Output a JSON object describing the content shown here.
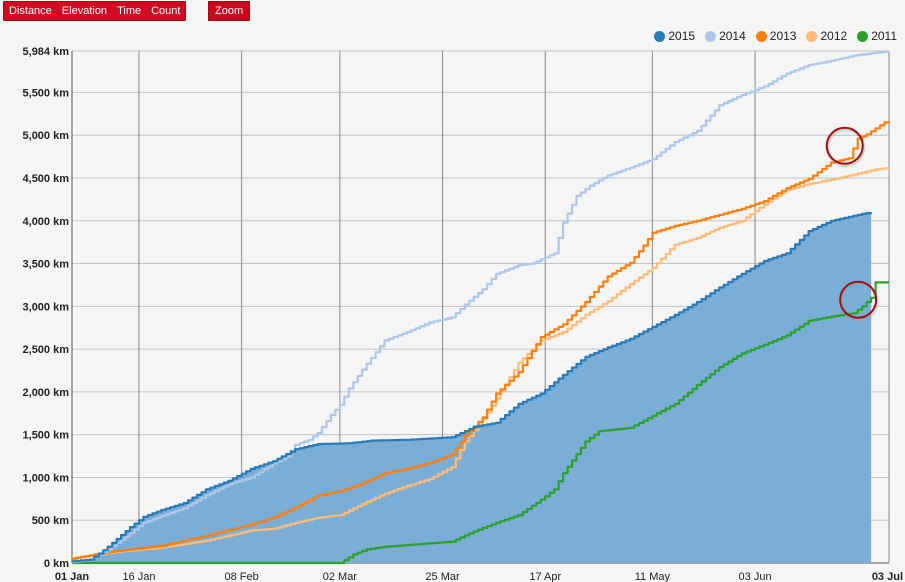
{
  "toolbar": {
    "tabs": [
      "Distance",
      "Elevation",
      "Time",
      "Count"
    ],
    "zoom_label": "Zoom"
  },
  "colors": {
    "2015": "#2a7ab8",
    "2014": "#aec7e8",
    "2013": "#ff7f0e",
    "2012": "#ffbb78",
    "2011": "#2ca02c",
    "area_2015": "#7aaed6",
    "highlight_circle": "#a01010"
  },
  "chart_data": {
    "type": "line",
    "title": "",
    "xlabel": "",
    "ylabel": "",
    "x_axis": {
      "ticks": [
        "01 Jan",
        "16 Jan",
        "08 Feb",
        "02 Mar",
        "25 Mar",
        "17 Apr",
        "11 May",
        "03 Jun",
        "03 Jul"
      ],
      "tick_days": [
        0,
        15,
        38,
        60,
        83,
        106,
        130,
        153,
        183
      ],
      "range_days": [
        0,
        183
      ]
    },
    "y_axis": {
      "ticks": [
        "0 km",
        "500 km",
        "1,000 km",
        "1,500 km",
        "2,000 km",
        "2,500 km",
        "3,000 km",
        "3,500 km",
        "4,000 km",
        "4,500 km",
        "5,000 km",
        "5,500 km",
        "5,984 km"
      ],
      "tick_values": [
        0,
        500,
        1000,
        1500,
        2000,
        2500,
        3000,
        3500,
        4000,
        4500,
        5000,
        5500,
        5984
      ],
      "range": [
        0,
        5984
      ],
      "unit": "km"
    },
    "grid": true,
    "legend_position": "top-right",
    "series": [
      {
        "name": "2015",
        "color_key": "2015",
        "fill": true,
        "points": [
          [
            0,
            20
          ],
          [
            4,
            40
          ],
          [
            6,
            110
          ],
          [
            8,
            190
          ],
          [
            10,
            280
          ],
          [
            13,
            420
          ],
          [
            16,
            540
          ],
          [
            20,
            620
          ],
          [
            25,
            700
          ],
          [
            30,
            860
          ],
          [
            35,
            960
          ],
          [
            40,
            1100
          ],
          [
            45,
            1190
          ],
          [
            50,
            1330
          ],
          [
            55,
            1390
          ],
          [
            62,
            1400
          ],
          [
            67,
            1430
          ],
          [
            75,
            1440
          ],
          [
            85,
            1470
          ],
          [
            90,
            1590
          ],
          [
            95,
            1640
          ],
          [
            100,
            1860
          ],
          [
            105,
            1980
          ],
          [
            110,
            2200
          ],
          [
            115,
            2410
          ],
          [
            120,
            2520
          ],
          [
            125,
            2620
          ],
          [
            130,
            2760
          ],
          [
            135,
            2900
          ],
          [
            140,
            3050
          ],
          [
            145,
            3220
          ],
          [
            150,
            3380
          ],
          [
            155,
            3530
          ],
          [
            160,
            3620
          ],
          [
            165,
            3880
          ],
          [
            170,
            4000
          ],
          [
            176,
            4070
          ],
          [
            179,
            4100
          ]
        ]
      },
      {
        "name": "2014",
        "color_key": "2014",
        "fill": false,
        "points": [
          [
            0,
            10
          ],
          [
            4,
            40
          ],
          [
            8,
            160
          ],
          [
            12,
            310
          ],
          [
            16,
            470
          ],
          [
            20,
            550
          ],
          [
            25,
            640
          ],
          [
            30,
            790
          ],
          [
            35,
            920
          ],
          [
            40,
            1000
          ],
          [
            45,
            1160
          ],
          [
            48,
            1240
          ],
          [
            50,
            1380
          ],
          [
            53,
            1440
          ],
          [
            55,
            1520
          ],
          [
            58,
            1730
          ],
          [
            60,
            1850
          ],
          [
            62,
            2040
          ],
          [
            65,
            2260
          ],
          [
            70,
            2600
          ],
          [
            75,
            2700
          ],
          [
            80,
            2810
          ],
          [
            85,
            2870
          ],
          [
            88,
            3020
          ],
          [
            92,
            3200
          ],
          [
            95,
            3380
          ],
          [
            100,
            3480
          ],
          [
            103,
            3500
          ],
          [
            108,
            3620
          ],
          [
            110,
            3980
          ],
          [
            113,
            4290
          ],
          [
            116,
            4410
          ],
          [
            120,
            4530
          ],
          [
            125,
            4620
          ],
          [
            130,
            4720
          ],
          [
            135,
            4920
          ],
          [
            140,
            5050
          ],
          [
            145,
            5350
          ],
          [
            150,
            5470
          ],
          [
            155,
            5570
          ],
          [
            160,
            5720
          ],
          [
            165,
            5820
          ],
          [
            170,
            5870
          ],
          [
            175,
            5930
          ],
          [
            183,
            5984
          ]
        ]
      },
      {
        "name": "2013",
        "color_key": "2013",
        "fill": false,
        "points": [
          [
            0,
            50
          ],
          [
            5,
            100
          ],
          [
            10,
            140
          ],
          [
            20,
            200
          ],
          [
            30,
            320
          ],
          [
            40,
            450
          ],
          [
            45,
            530
          ],
          [
            50,
            650
          ],
          [
            55,
            790
          ],
          [
            60,
            840
          ],
          [
            65,
            930
          ],
          [
            70,
            1050
          ],
          [
            75,
            1100
          ],
          [
            80,
            1170
          ],
          [
            85,
            1270
          ],
          [
            88,
            1490
          ],
          [
            92,
            1700
          ],
          [
            95,
            1980
          ],
          [
            100,
            2230
          ],
          [
            105,
            2640
          ],
          [
            110,
            2790
          ],
          [
            115,
            3050
          ],
          [
            120,
            3350
          ],
          [
            125,
            3510
          ],
          [
            128,
            3710
          ],
          [
            130,
            3860
          ],
          [
            135,
            3940
          ],
          [
            140,
            4000
          ],
          [
            145,
            4070
          ],
          [
            150,
            4140
          ],
          [
            155,
            4230
          ],
          [
            160,
            4380
          ],
          [
            165,
            4490
          ],
          [
            170,
            4680
          ],
          [
            174,
            4730
          ],
          [
            176,
            4960
          ],
          [
            178,
            5010
          ],
          [
            182,
            5150
          ],
          [
            183,
            5160
          ]
        ]
      },
      {
        "name": "2012",
        "color_key": "2012",
        "fill": false,
        "points": [
          [
            0,
            60
          ],
          [
            5,
            90
          ],
          [
            10,
            130
          ],
          [
            20,
            180
          ],
          [
            30,
            260
          ],
          [
            40,
            380
          ],
          [
            45,
            400
          ],
          [
            50,
            470
          ],
          [
            55,
            530
          ],
          [
            60,
            560
          ],
          [
            65,
            690
          ],
          [
            70,
            810
          ],
          [
            75,
            900
          ],
          [
            80,
            980
          ],
          [
            85,
            1120
          ],
          [
            88,
            1420
          ],
          [
            92,
            1680
          ],
          [
            95,
            1920
          ],
          [
            100,
            2340
          ],
          [
            105,
            2600
          ],
          [
            110,
            2700
          ],
          [
            115,
            2900
          ],
          [
            120,
            3060
          ],
          [
            125,
            3260
          ],
          [
            130,
            3450
          ],
          [
            135,
            3720
          ],
          [
            140,
            3800
          ],
          [
            145,
            3920
          ],
          [
            150,
            4000
          ],
          [
            155,
            4190
          ],
          [
            160,
            4360
          ],
          [
            165,
            4430
          ],
          [
            170,
            4480
          ],
          [
            175,
            4540
          ],
          [
            180,
            4600
          ],
          [
            183,
            4620
          ]
        ]
      },
      {
        "name": "2011",
        "color_key": "2011",
        "fill": false,
        "points": [
          [
            0,
            0
          ],
          [
            60,
            0
          ],
          [
            63,
            100
          ],
          [
            66,
            160
          ],
          [
            70,
            190
          ],
          [
            75,
            210
          ],
          [
            85,
            250
          ],
          [
            90,
            370
          ],
          [
            95,
            470
          ],
          [
            100,
            560
          ],
          [
            105,
            740
          ],
          [
            108,
            860
          ],
          [
            110,
            1050
          ],
          [
            115,
            1420
          ],
          [
            118,
            1540
          ],
          [
            125,
            1580
          ],
          [
            130,
            1720
          ],
          [
            135,
            1860
          ],
          [
            140,
            2080
          ],
          [
            145,
            2290
          ],
          [
            150,
            2450
          ],
          [
            155,
            2550
          ],
          [
            160,
            2660
          ],
          [
            165,
            2830
          ],
          [
            170,
            2880
          ],
          [
            175,
            2920
          ],
          [
            177,
            3000
          ],
          [
            179,
            3100
          ],
          [
            180,
            3200
          ],
          [
            180,
            3280
          ],
          [
            183,
            3280
          ]
        ]
      }
    ],
    "highlights": [
      {
        "day": 176,
        "value": 4900
      },
      {
        "day": 179,
        "value": 3100
      }
    ]
  }
}
